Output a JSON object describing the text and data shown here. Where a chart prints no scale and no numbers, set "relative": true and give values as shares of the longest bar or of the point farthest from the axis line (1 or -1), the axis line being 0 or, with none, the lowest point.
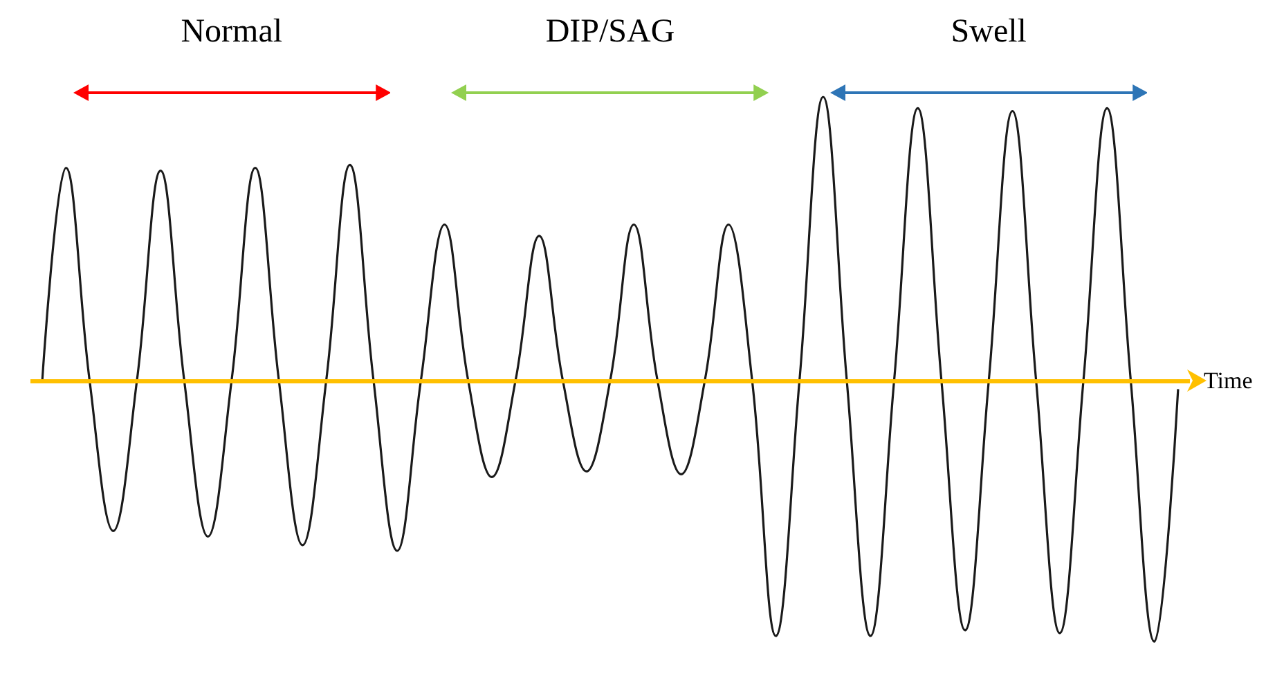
{
  "chart_data": {
    "type": "line",
    "relative": true,
    "xlabel": "Time",
    "annotations": [
      "Normal",
      "DIP/SAG",
      "Swell"
    ],
    "categories": [
      null,
      null,
      null,
      null,
      null,
      null,
      null,
      null,
      null,
      null,
      null,
      null,
      null,
      null,
      null,
      null,
      null,
      null,
      null,
      null,
      null,
      null,
      null,
      null,
      null,
      null,
      null,
      null,
      null,
      null,
      null,
      null,
      null,
      null,
      null,
      null,
      null,
      null,
      null,
      null,
      null,
      null,
      null,
      null,
      null,
      null,
      null,
      null,
      null
    ],
    "series": [
      {
        "color": "#1a1a1a",
        "values": [
          0,
          0.75,
          0,
          -0.53,
          0,
          0.74,
          0,
          -0.55,
          0,
          0.75,
          0,
          -0.58,
          0,
          0.76,
          0,
          -0.6,
          0,
          0.55,
          0,
          -0.34,
          0,
          0.51,
          0,
          -0.32,
          0,
          0.55,
          0,
          -0.33,
          0,
          0.55,
          0,
          -0.9,
          0,
          1,
          0,
          -0.9,
          0,
          0.96,
          0,
          -0.88,
          0,
          0.95,
          0,
          -0.89,
          0,
          0.96,
          0,
          -0.92,
          -0.03
        ]
      }
    ],
    "ref_lines": [
      {
        "axis": "y",
        "value": 0,
        "color": "#ffc000"
      }
    ],
    "marker": "none",
    "line_style": "solid"
  }
}
